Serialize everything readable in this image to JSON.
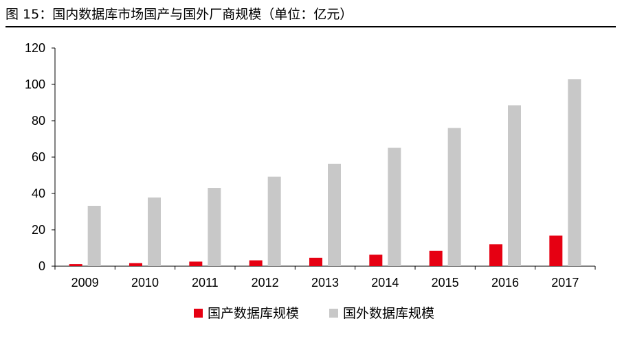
{
  "title": "图 15：国内数据库市场国产与国外厂商规模（单位：亿元）",
  "colors": {
    "domestic": "#e60012",
    "foreign": "#c8c8c8",
    "axis": "#000000"
  },
  "chart_data": {
    "type": "bar",
    "categories": [
      "2009",
      "2010",
      "2011",
      "2012",
      "2013",
      "2014",
      "2015",
      "2016",
      "2017"
    ],
    "series": [
      {
        "name": "国产数据库规模",
        "values": [
          1.1,
          1.7,
          2.5,
          3.2,
          4.6,
          6.3,
          8.4,
          12.0,
          16.8
        ]
      },
      {
        "name": "国外数据库规模",
        "values": [
          33.2,
          37.8,
          43.0,
          49.2,
          56.3,
          65.1,
          76.0,
          88.5,
          102.9
        ]
      }
    ],
    "ylim": [
      0,
      120
    ],
    "yticks": [
      0,
      20,
      40,
      60,
      80,
      100,
      120
    ],
    "xlabel": "",
    "ylabel": "",
    "legend_position": "bottom",
    "grid": false
  }
}
